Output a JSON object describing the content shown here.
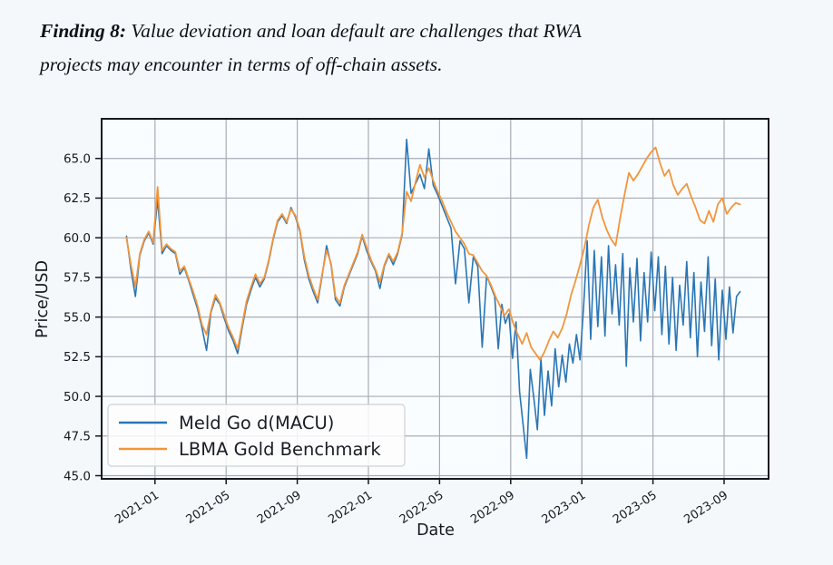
{
  "heading": {
    "label": "Finding 8:",
    "line1": " Value deviation and loan default are challenges that RWA",
    "line2": "projects may encounter in terms of off-chain assets."
  },
  "chart_data": {
    "type": "line",
    "title": "",
    "xlabel": "Date",
    "ylabel": "Price/USD",
    "x_unit": "months since 2021-01 tick",
    "xlim": [
      -3.0,
      34.5
    ],
    "ylim": [
      44.8,
      67.5
    ],
    "grid": true,
    "legend_position": "lower-left",
    "background": "#fafdff",
    "grid_color": "#a8acb4",
    "frame_color": "#15181f",
    "x_ticks": {
      "positions": [
        0,
        4,
        8,
        12,
        16,
        20,
        24,
        28,
        32
      ],
      "labels": [
        "2021-01",
        "2021-05",
        "2021-09",
        "2022-01",
        "2022-05",
        "2022-09",
        "2023-01",
        "2023-05",
        "2023-09"
      ]
    },
    "y_ticks": {
      "positions": [
        65.0,
        62.5,
        60.0,
        57.5,
        55.0,
        52.5,
        50.0,
        47.5,
        45.0
      ],
      "labels": [
        "65.0",
        "62.5",
        "60.0",
        "57.5",
        "55.0",
        "52.5",
        "50.0",
        "47.5",
        "45.0"
      ]
    },
    "series": [
      {
        "name": "Meld Go d(MACU)",
        "color": "#2a76b4",
        "segments": [
          {
            "x0": -1.6,
            "dx": 0.25,
            "y": [
              60.1,
              58.0,
              56.3,
              58.9,
              59.8,
              60.3,
              59.6,
              62.4,
              59.0,
              59.5,
              59.2,
              59.0,
              57.7,
              58.1,
              57.3,
              56.4,
              55.5,
              54.3,
              52.9,
              55.3,
              56.2,
              55.8,
              54.9,
              54.1,
              53.5,
              52.7,
              54.3,
              55.8,
              56.7,
              57.5,
              56.9,
              57.4,
              58.5,
              59.9,
              61.0,
              61.4,
              60.9,
              61.9,
              61.3,
              60.4,
              58.6,
              57.4,
              56.6,
              55.9,
              57.6,
              59.5,
              58.3,
              56.1,
              55.7,
              56.9,
              57.6,
              58.3,
              59.0,
              60.1,
              59.2,
              58.5,
              57.9,
              56.8,
              58.2,
              58.9,
              58.3,
              59.0,
              60.2,
              66.2,
              62.8,
              63.4,
              64.0,
              63.1,
              65.6,
              63.3,
              62.7,
              62.0,
              61.3,
              60.6,
              57.1,
              59.8,
              59.3,
              55.9,
              58.8,
              58.2,
              53.1,
              57.6,
              56.9
            ]
          },
          {
            "x0": 19.1,
            "dx": 0.2,
            "y": [
              56.3,
              53.0,
              55.8,
              54.6,
              55.2,
              52.4,
              54.7,
              50.3,
              48.2,
              46.1,
              51.7,
              49.9,
              47.9,
              52.4,
              48.8,
              51.6,
              49.4,
              53.0,
              50.6,
              52.6,
              50.9,
              53.3,
              52.1,
              53.9,
              52.3,
              55.7,
              59.8,
              53.6,
              59.2,
              54.4,
              58.8,
              53.8,
              59.5,
              55.2,
              58.3,
              54.5,
              59.0,
              51.9,
              58.1,
              54.7,
              58.7,
              53.5,
              57.8,
              54.7,
              59.1,
              55.4,
              58.8,
              53.9,
              58.2,
              53.3,
              57.5,
              52.9,
              57.0,
              54.5,
              58.5,
              53.7,
              57.8,
              52.5,
              57.2,
              54.1,
              58.8,
              53.2,
              57.4,
              52.3,
              56.7,
              53.6,
              56.9,
              54.0,
              56.3,
              56.6
            ]
          }
        ]
      },
      {
        "name": "LBMA Gold Benchmark",
        "color": "#f2953c",
        "segments": [
          {
            "x0": -1.6,
            "dx": 0.25,
            "y": [
              60.0,
              58.3,
              56.9,
              59.0,
              59.9,
              60.4,
              59.7,
              63.2,
              59.2,
              59.6,
              59.3,
              59.1,
              57.9,
              58.2,
              57.4,
              56.6,
              55.7,
              54.5,
              53.9,
              55.4,
              56.4,
              55.9,
              55.1,
              54.3,
              53.7,
              53.0,
              54.5,
              56.0,
              56.9,
              57.7,
              57.1,
              57.5,
              58.6,
              60.0,
              61.1,
              61.5,
              61.0,
              61.8,
              61.4,
              60.5,
              58.8,
              57.6,
              56.8,
              56.1,
              57.7,
              59.2,
              58.4,
              56.3,
              55.9,
              57.0,
              57.7,
              58.4,
              59.1,
              60.2,
              59.4,
              58.6,
              58.0,
              57.2,
              58.3,
              59.0,
              58.5,
              59.1,
              60.3,
              62.9,
              62.3,
              63.5,
              64.6,
              63.8,
              64.4,
              63.6,
              62.9,
              62.3,
              61.6,
              61.0,
              60.4,
              60.0,
              59.6,
              59.0,
              58.9,
              58.4,
              57.9,
              57.6,
              57.0,
              56.3,
              55.7,
              55.1,
              55.5,
              54.6,
              53.9,
              53.3,
              54.0,
              53.1,
              52.7,
              52.3,
              52.8,
              53.5,
              54.1,
              53.7,
              54.3,
              55.2,
              56.4,
              57.3,
              58.3,
              59.4,
              60.8,
              61.9,
              62.4,
              61.3,
              60.5,
              59.9,
              59.5,
              61.2,
              62.7,
              64.1,
              63.6,
              64.0,
              64.5,
              65.0,
              65.4,
              65.7,
              64.7,
              63.9,
              64.3,
              63.3,
              62.7,
              63.1,
              63.4,
              62.6,
              61.9,
              61.1,
              60.9,
              61.7,
              61.0,
              62.1,
              62.5,
              61.5,
              61.9,
              62.2,
              62.1
            ]
          }
        ]
      }
    ]
  }
}
